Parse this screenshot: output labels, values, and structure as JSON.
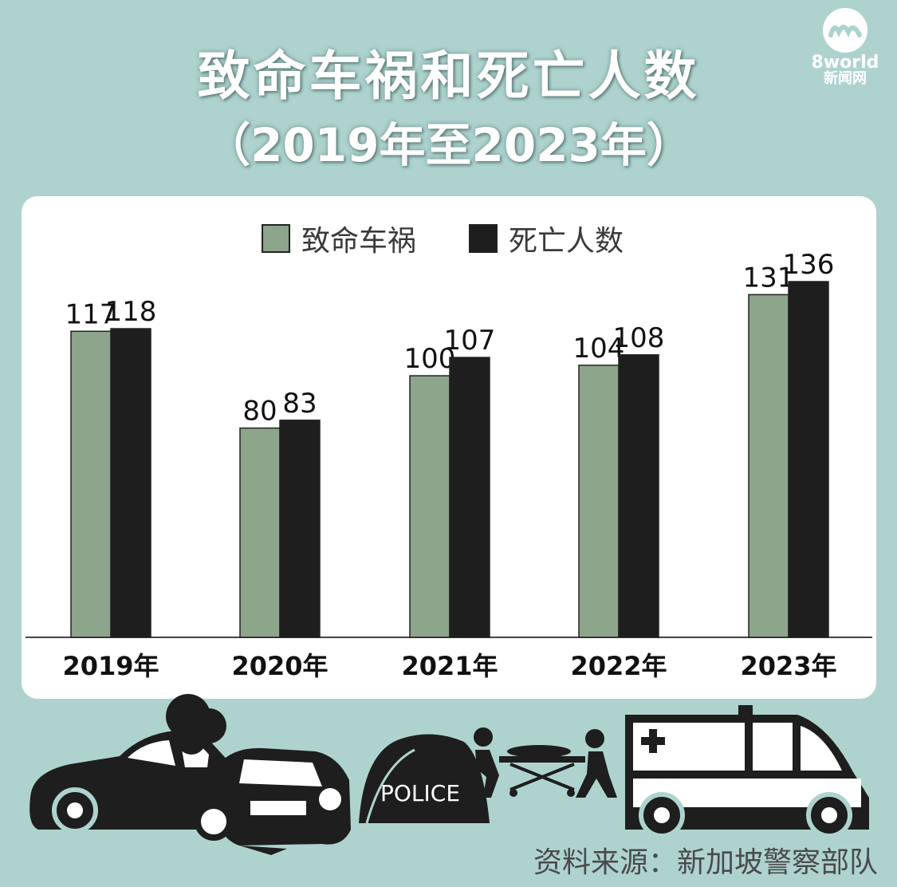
{
  "title": {
    "line1": "致命车祸和死亡人数",
    "line2": "（2019年至2023年）"
  },
  "logo": {
    "brand": "8world",
    "subtitle": "新闻网"
  },
  "chart_data": {
    "type": "bar",
    "categories": [
      "2019年",
      "2020年",
      "2021年",
      "2022年",
      "2023年"
    ],
    "series": [
      {
        "name": "致命车祸",
        "values": [
          117,
          80,
          100,
          104,
          131
        ],
        "color": "#8da58b"
      },
      {
        "name": "死亡人数",
        "values": [
          118,
          83,
          107,
          108,
          136
        ],
        "color": "#1e1e1e"
      }
    ],
    "ylim": [
      0,
      136
    ],
    "grid": false,
    "legend": "top-center",
    "data_labels": true
  },
  "illustration": {
    "police_tent_label": "POLICE",
    "icons": [
      "crashed-cars-icon",
      "police-tent-icon",
      "stretcher-bearers-icon",
      "ambulance-icon"
    ]
  },
  "source": "资料来源：新加坡警察部队",
  "colors": {
    "background": "#aed3cf",
    "card": "#ffffff",
    "series_green": "#8da58b",
    "series_black": "#1e1e1e"
  }
}
